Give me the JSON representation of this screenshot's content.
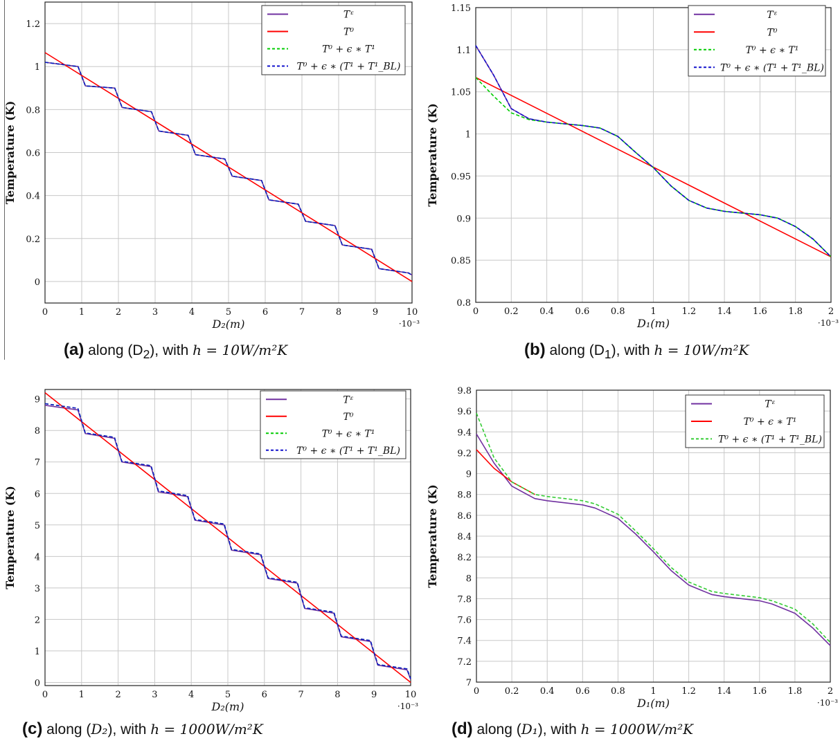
{
  "captions": [
    {
      "letter": "(a)",
      "text": " along (D",
      "sub": "2",
      "text2": "), with ",
      "math": "h = 10W/m²K"
    },
    {
      "letter": "(b)",
      "text": " along (D",
      "sub": "1",
      "text2": "), with ",
      "math": "h = 10W/m²K"
    },
    {
      "letter": "(c)",
      "text": " along (",
      "sub": "",
      "text2": "), with ",
      "math": "h = 1000W/m²K",
      "axis": "D₂"
    },
    {
      "letter": "(d)",
      "text": " along (",
      "sub": "",
      "text2": "), with ",
      "math": "h = 1000W/m²K",
      "axis": "D₁"
    }
  ],
  "chart_data": [
    {
      "id": "a",
      "type": "line",
      "xlabel": "D₂(m)",
      "ylabel": "Temperature (K)",
      "x_multiplier": "·10⁻³",
      "xlim": [
        0,
        10
      ],
      "ylim": [
        -0.1,
        1.3
      ],
      "xticks": [
        "0",
        "1",
        "2",
        "3",
        "4",
        "5",
        "6",
        "7",
        "8",
        "9",
        "10"
      ],
      "yticks": [
        "0",
        "0.2",
        "0.4",
        "0.6",
        "0.8",
        "1",
        "1.2"
      ],
      "grid": true,
      "legend_position": "top-right",
      "series": [
        {
          "name": "Tᵋ",
          "color": "#7030a0",
          "dash": "solid",
          "x": [
            0,
            0.9,
            1.1,
            1.9,
            2.1,
            2.9,
            3.1,
            3.9,
            4.1,
            4.9,
            5.1,
            5.9,
            6.1,
            6.9,
            7.1,
            7.9,
            8.1,
            8.9,
            9.1,
            9.9,
            10
          ],
          "y": [
            1.02,
            1.0,
            0.91,
            0.9,
            0.81,
            0.79,
            0.7,
            0.68,
            0.59,
            0.57,
            0.49,
            0.47,
            0.38,
            0.36,
            0.28,
            0.26,
            0.17,
            0.15,
            0.06,
            0.04,
            0.03
          ]
        },
        {
          "name": "T⁰",
          "color": "#ff0000",
          "dash": "solid",
          "x": [
            0,
            10
          ],
          "y": [
            1.065,
            0.0
          ]
        },
        {
          "name": "T⁰ + ϵ ∗ T¹",
          "color": "#00cc00",
          "dash": "dashed",
          "x": [
            0,
            0.9,
            1.1,
            1.9,
            2.1,
            2.9,
            3.1,
            3.9,
            4.1,
            4.9,
            5.1,
            5.9,
            6.1,
            6.9,
            7.1,
            7.9,
            8.1,
            8.9,
            9.1,
            9.9,
            10
          ],
          "y": [
            1.02,
            1.0,
            0.91,
            0.9,
            0.81,
            0.79,
            0.7,
            0.68,
            0.59,
            0.57,
            0.49,
            0.47,
            0.38,
            0.36,
            0.28,
            0.26,
            0.17,
            0.15,
            0.06,
            0.04,
            0.03
          ]
        },
        {
          "name": "T⁰ + ϵ ∗ (T¹ + T¹_BL)",
          "color": "#1010cc",
          "dash": "dashed",
          "x": [
            0,
            0.9,
            1.1,
            1.9,
            2.1,
            2.9,
            3.1,
            3.9,
            4.1,
            4.9,
            5.1,
            5.9,
            6.1,
            6.9,
            7.1,
            7.9,
            8.1,
            8.9,
            9.1,
            9.9,
            10
          ],
          "y": [
            1.02,
            1.0,
            0.91,
            0.9,
            0.81,
            0.79,
            0.7,
            0.68,
            0.59,
            0.57,
            0.49,
            0.47,
            0.38,
            0.36,
            0.28,
            0.26,
            0.17,
            0.15,
            0.06,
            0.04,
            0.03
          ]
        }
      ]
    },
    {
      "id": "b",
      "type": "line",
      "xlabel": "D₁(m)",
      "ylabel": "Temperature (K)",
      "x_multiplier": "·10⁻³",
      "xlim": [
        0,
        2
      ],
      "ylim": [
        0.8,
        1.15
      ],
      "xticks": [
        "0",
        "0.2",
        "0.4",
        "0.6",
        "0.8",
        "1",
        "1.2",
        "1.4",
        "1.6",
        "1.8",
        "2"
      ],
      "yticks": [
        "0.8",
        "0.85",
        "0.9",
        "0.95",
        "1",
        "1.05",
        "1.1",
        "1.15"
      ],
      "grid": true,
      "legend_position": "top-right",
      "series": [
        {
          "name": "Tᵋ",
          "color": "#7030a0",
          "dash": "solid",
          "x": [
            0,
            0.1,
            0.2,
            0.3,
            0.4,
            0.5,
            0.6,
            0.7,
            0.8,
            0.9,
            1.0,
            1.1,
            1.2,
            1.3,
            1.4,
            1.5,
            1.6,
            1.7,
            1.8,
            1.9,
            2.0
          ],
          "y": [
            1.105,
            1.07,
            1.03,
            1.018,
            1.014,
            1.012,
            1.01,
            1.007,
            0.997,
            0.978,
            0.96,
            0.938,
            0.921,
            0.912,
            0.908,
            0.906,
            0.904,
            0.9,
            0.89,
            0.875,
            0.854
          ]
        },
        {
          "name": "T⁰",
          "color": "#ff0000",
          "dash": "solid",
          "x": [
            0,
            2
          ],
          "y": [
            1.067,
            0.854
          ]
        },
        {
          "name": "T⁰ + ϵ ∗ T¹",
          "color": "#00cc00",
          "dash": "dashed",
          "x": [
            0,
            0.1,
            0.2,
            0.3,
            0.4,
            0.5,
            0.6,
            0.7,
            0.8,
            0.9,
            1.0,
            1.1,
            1.2,
            1.3,
            1.4,
            1.5,
            1.6,
            1.7,
            1.8,
            1.9,
            2.0
          ],
          "y": [
            1.067,
            1.045,
            1.025,
            1.017,
            1.014,
            1.012,
            1.01,
            1.007,
            0.997,
            0.978,
            0.96,
            0.938,
            0.921,
            0.912,
            0.908,
            0.906,
            0.904,
            0.9,
            0.89,
            0.875,
            0.854
          ]
        },
        {
          "name": "T⁰ + ϵ ∗ (T¹ + T¹_BL)",
          "color": "#1010cc",
          "dash": "dashed",
          "x": [
            0,
            0.1,
            0.2,
            0.3,
            0.4,
            0.5,
            0.6,
            0.7,
            0.8,
            0.9,
            1.0,
            1.1,
            1.2,
            1.3,
            1.4,
            1.5,
            1.6,
            1.7,
            1.8,
            1.9,
            2.0
          ],
          "y": [
            1.105,
            1.07,
            1.03,
            1.018,
            1.014,
            1.012,
            1.01,
            1.007,
            0.997,
            0.978,
            0.96,
            0.938,
            0.921,
            0.912,
            0.908,
            0.906,
            0.904,
            0.9,
            0.89,
            0.875,
            0.854
          ]
        }
      ]
    },
    {
      "id": "c",
      "type": "line",
      "xlabel": "D₂(m)",
      "ylabel": "Temperature (K)",
      "x_multiplier": "·10⁻³",
      "xlim": [
        0,
        10
      ],
      "ylim": [
        -0.1,
        9.3
      ],
      "xticks": [
        "0",
        "1",
        "2",
        "3",
        "4",
        "5",
        "6",
        "7",
        "8",
        "9",
        "10"
      ],
      "yticks": [
        "0",
        "1",
        "2",
        "3",
        "4",
        "5",
        "6",
        "7",
        "8",
        "9"
      ],
      "grid": true,
      "legend_position": "top-right",
      "series": [
        {
          "name": "Tᵋ",
          "color": "#7030a0",
          "dash": "solid",
          "x": [
            0,
            0.9,
            1.1,
            1.9,
            2.1,
            2.9,
            3.1,
            3.9,
            4.1,
            4.9,
            5.1,
            5.9,
            6.1,
            6.9,
            7.1,
            7.9,
            8.1,
            8.9,
            9.1,
            9.9,
            10
          ],
          "y": [
            8.8,
            8.65,
            7.9,
            7.75,
            7.0,
            6.85,
            6.05,
            5.9,
            5.15,
            5.0,
            4.2,
            4.05,
            3.3,
            3.15,
            2.35,
            2.2,
            1.45,
            1.3,
            0.55,
            0.4,
            0.1
          ]
        },
        {
          "name": "T⁰",
          "color": "#ff0000",
          "dash": "solid",
          "x": [
            0,
            10
          ],
          "y": [
            9.2,
            0.0
          ]
        },
        {
          "name": "T⁰ + ϵ ∗ T¹",
          "color": "#00cc00",
          "dash": "dashed",
          "x": [
            0,
            0.9,
            1.1,
            1.9,
            2.1,
            2.9,
            3.1,
            3.9,
            4.1,
            4.9,
            5.1,
            5.9,
            6.1,
            6.9,
            7.1,
            7.9,
            8.1,
            8.9,
            9.1,
            9.9,
            10
          ],
          "y": [
            8.85,
            8.7,
            7.92,
            7.78,
            7.02,
            6.88,
            6.08,
            5.93,
            5.17,
            5.03,
            4.22,
            4.08,
            3.32,
            3.18,
            2.37,
            2.23,
            1.47,
            1.33,
            0.57,
            0.43,
            0.12
          ]
        },
        {
          "name": "T⁰ + ϵ ∗ (T¹ + T¹_BL)",
          "color": "#1010cc",
          "dash": "dashed",
          "x": [
            0,
            0.9,
            1.1,
            1.9,
            2.1,
            2.9,
            3.1,
            3.9,
            4.1,
            4.9,
            5.1,
            5.9,
            6.1,
            6.9,
            7.1,
            7.9,
            8.1,
            8.9,
            9.1,
            9.9,
            10
          ],
          "y": [
            8.85,
            8.7,
            7.92,
            7.78,
            7.02,
            6.88,
            6.08,
            5.93,
            5.17,
            5.03,
            4.22,
            4.08,
            3.32,
            3.18,
            2.37,
            2.23,
            1.47,
            1.33,
            0.57,
            0.43,
            0.12
          ]
        }
      ]
    },
    {
      "id": "d",
      "type": "line",
      "xlabel": "D₁(m)",
      "ylabel": "Temperature (K)",
      "x_multiplier": "·10⁻³",
      "xlim": [
        0,
        2
      ],
      "ylim": [
        7.0,
        9.8
      ],
      "xticks": [
        "0",
        "0.2",
        "0.4",
        "0.6",
        "0.8",
        "1",
        "1.2",
        "1.4",
        "1.6",
        "1.8",
        "2"
      ],
      "yticks": [
        "7",
        "7.2",
        "7.4",
        "7.6",
        "7.8",
        "8",
        "8.2",
        "8.4",
        "8.6",
        "8.8",
        "9",
        "9.2",
        "9.4",
        "9.6",
        "9.8"
      ],
      "grid": true,
      "legend_position": "top-right",
      "series": [
        {
          "name": "Tᵋ",
          "color": "#7030a0",
          "dash": "solid",
          "x": [
            0,
            0.1,
            0.2,
            0.33,
            0.4,
            0.5,
            0.6,
            0.67,
            0.8,
            0.9,
            1.0,
            1.1,
            1.2,
            1.33,
            1.4,
            1.5,
            1.6,
            1.67,
            1.8,
            1.9,
            2.0
          ],
          "y": [
            9.38,
            9.1,
            8.88,
            8.76,
            8.74,
            8.72,
            8.7,
            8.67,
            8.57,
            8.42,
            8.25,
            8.07,
            7.93,
            7.84,
            7.82,
            7.8,
            7.78,
            7.75,
            7.66,
            7.52,
            7.35
          ]
        },
        {
          "name": "T⁰ + ϵ ∗ T¹",
          "color": "#ff0000",
          "dash": "solid",
          "x": [
            0,
            0.1,
            0.2,
            0.33
          ],
          "y": [
            9.23,
            9.05,
            8.92,
            8.8
          ]
        },
        {
          "name": "T⁰ + ϵ ∗ (T¹ + T¹_BL)",
          "color": "#33cc33",
          "dash": "dashed",
          "x": [
            0,
            0.1,
            0.2,
            0.33,
            0.4,
            0.5,
            0.6,
            0.67,
            0.8,
            0.9,
            1.0,
            1.1,
            1.2,
            1.33,
            1.4,
            1.5,
            1.6,
            1.67,
            1.8,
            1.9,
            2.0
          ],
          "y": [
            9.58,
            9.15,
            8.92,
            8.8,
            8.78,
            8.76,
            8.74,
            8.71,
            8.61,
            8.45,
            8.28,
            8.1,
            7.96,
            7.87,
            7.85,
            7.83,
            7.81,
            7.78,
            7.7,
            7.56,
            7.38
          ]
        }
      ]
    }
  ]
}
